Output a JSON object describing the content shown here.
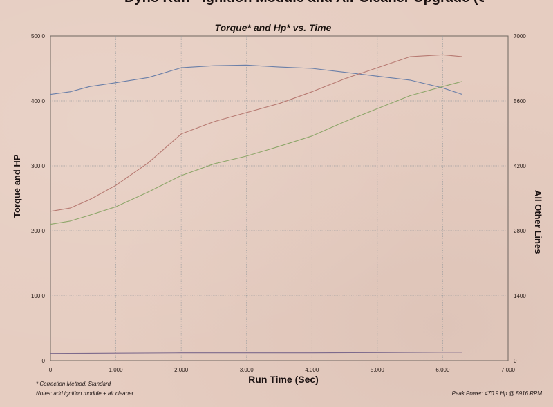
{
  "header": {
    "top_title": "Dyno Run - Ignition Module and Air Cleaner Upgrade (Corrected)"
  },
  "chart_data": {
    "type": "line",
    "title": "Torque* and Hp* vs. Time",
    "xlabel": "Run Time (Sec)",
    "ylabel": "Torque and HP",
    "y2label": "All Other Lines",
    "xlim": [
      0,
      7
    ],
    "ylim": [
      0,
      500
    ],
    "y2lim": [
      0,
      7000
    ],
    "x_ticks": [
      "0",
      "1.000",
      "2.000",
      "3.000",
      "4.000",
      "5.000",
      "6.000",
      "7.000"
    ],
    "y_ticks": [
      "0",
      "100.0",
      "200.0",
      "300.0",
      "400.0",
      "500.0"
    ],
    "y2_ticks": [
      "0",
      "1400",
      "2800",
      "4200",
      "5600",
      "7000"
    ],
    "grid": true,
    "series": [
      {
        "color": "#6a7fa8",
        "axis": "left",
        "x": [
          0,
          0.3,
          0.6,
          1.0,
          1.5,
          2.0,
          2.5,
          3.0,
          3.5,
          4.0,
          4.5,
          5.0,
          5.5,
          6.0,
          6.3
        ],
        "y": [
          410,
          414,
          422,
          428,
          436,
          451,
          454,
          455,
          452,
          450,
          444,
          438,
          432,
          420,
          410
        ]
      },
      {
        "color": "#b77a72",
        "axis": "left",
        "x": [
          0,
          0.3,
          0.6,
          1.0,
          1.5,
          2.0,
          2.5,
          3.0,
          3.5,
          4.0,
          4.5,
          5.0,
          5.5,
          6.0,
          6.3
        ],
        "y": [
          230,
          235,
          248,
          270,
          305,
          349,
          368,
          382,
          396,
          414,
          434,
          451,
          468,
          471,
          468
        ]
      },
      {
        "color": "#8ea66a",
        "axis": "left",
        "x": [
          0,
          0.3,
          0.6,
          1.0,
          1.5,
          2.0,
          2.5,
          3.0,
          3.5,
          4.0,
          4.5,
          5.0,
          5.5,
          6.0,
          6.3
        ],
        "y": [
          210,
          215,
          224,
          237,
          260,
          285,
          303,
          315,
          330,
          346,
          368,
          388,
          408,
          422,
          430
        ]
      },
      {
        "color": "#7d6a8c",
        "axis": "left",
        "x": [
          0,
          1.0,
          2.0,
          3.0,
          4.0,
          5.0,
          6.0,
          6.3
        ],
        "y": [
          11,
          11.5,
          12,
          12,
          12,
          12.5,
          13,
          13
        ]
      }
    ],
    "annotations": {
      "correction": "* Correction Method: Standard",
      "notes": "Notes:  add ignition module + air cleaner",
      "peak_power": "Peak Power: 470.9 Hp @ 5916 RPM"
    }
  }
}
